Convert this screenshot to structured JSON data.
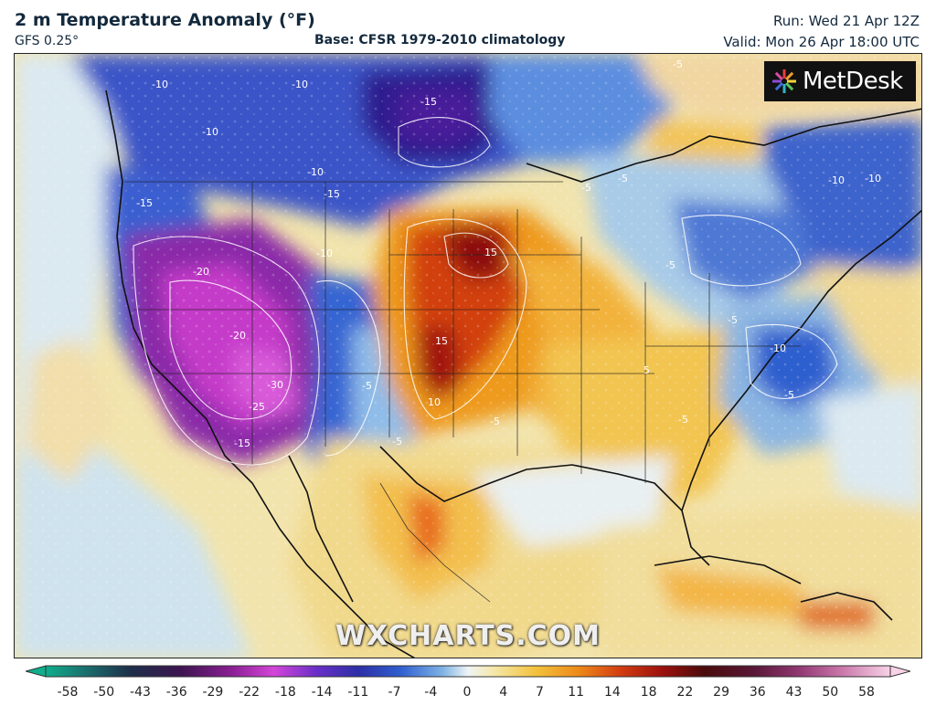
{
  "header": {
    "title": "2 m Temperature Anomaly (°F)",
    "model": "GFS 0.25°",
    "base": "Base: CFSR 1979-2010 climatology",
    "run": "Run: Wed 21 Apr 12Z",
    "valid": "Valid: Mon 26 Apr 18:00 UTC"
  },
  "brand": {
    "name": "MetDesk",
    "icon": "metdesk-logo-icon"
  },
  "watermark": "WXCHARTS.COM",
  "contour_labels": [
    "-10",
    "-15",
    "-10",
    "-10",
    "-10",
    "-15",
    "-5",
    "-10",
    "-15",
    "-20",
    "-20",
    "-30",
    "-25",
    "-15",
    "15",
    "15",
    "10",
    "-5",
    "-5",
    "-10",
    "-5",
    "-10",
    "-5",
    "5",
    "-5",
    "-5",
    "-5",
    "-5",
    "-10",
    "-5"
  ],
  "colorbar": {
    "ticks": [
      "-58",
      "-50",
      "-43",
      "-36",
      "-29",
      "-22",
      "-18",
      "-14",
      "-11",
      "-7",
      "-4",
      "0",
      "4",
      "7",
      "11",
      "14",
      "18",
      "22",
      "29",
      "36",
      "43",
      "50",
      "58"
    ],
    "colors": [
      "#0fae8c",
      "#1a4d6b",
      "#2a1f4d",
      "#47145e",
      "#7a1d8a",
      "#b22ec0",
      "#d445d8",
      "#6a2fc9",
      "#3b2fa8",
      "#2f57c7",
      "#4c93dd",
      "#d8eaf4",
      "#f5e7a8",
      "#f3c33d",
      "#ee9a1c",
      "#e05a14",
      "#b5150e",
      "#6b0d0d",
      "#3e0d14",
      "#6a1c4a",
      "#9b3e76",
      "#cf7fb0",
      "#f3c2dc"
    ]
  }
}
